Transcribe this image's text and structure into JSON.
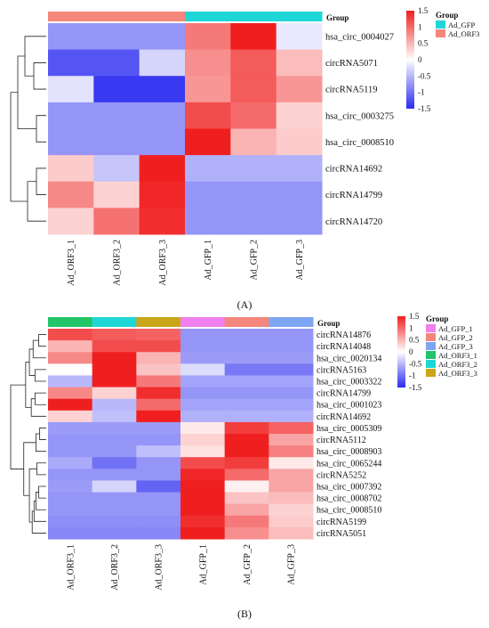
{
  "figure": {
    "label_a": "(A)",
    "label_b": "(B)"
  },
  "chart_data": [
    {
      "type": "heatmap",
      "panel": "A",
      "columns": [
        "Ad_ORF3_1",
        "Ad_ORF3_2",
        "Ad_ORF3_3",
        "Ad_GFP_1",
        "Ad_GFP_2",
        "Ad_GFP_3"
      ],
      "column_groups": [
        "Ad_ORF3",
        "Ad_ORF3",
        "Ad_ORF3",
        "Ad_GFP",
        "Ad_GFP",
        "Ad_GFP"
      ],
      "rows": [
        "hsa_circ_0004027",
        "circRNA5071",
        "circRNA5119",
        "hsa_circ_0003275",
        "hsa_circ_0008510",
        "circRNA14692",
        "circRNA14799",
        "circRNA14720"
      ],
      "values": [
        [
          -0.75,
          -0.75,
          -0.75,
          0.9,
          1.6,
          -0.15
        ],
        [
          -1.2,
          -1.2,
          -0.3,
          0.75,
          1.1,
          0.45
        ],
        [
          -0.2,
          -1.4,
          -1.4,
          0.7,
          1.1,
          0.7
        ],
        [
          -0.75,
          -0.75,
          -0.75,
          1.2,
          1.0,
          0.3
        ],
        [
          -0.75,
          -0.75,
          -0.75,
          1.5,
          0.5,
          0.35
        ],
        [
          0.35,
          -0.4,
          1.7,
          -0.55,
          -0.55,
          -0.55
        ],
        [
          0.8,
          0.3,
          1.45,
          -0.75,
          -0.75,
          -0.75
        ],
        [
          0.3,
          0.95,
          1.4,
          -0.75,
          -0.75,
          -0.75
        ]
      ],
      "color_scale": {
        "min": -1.5,
        "max": 1.5,
        "low": "#2b2bf0",
        "mid": "#ffffff",
        "high": "#f01f1f",
        "ticks": [
          "1.5",
          "1",
          "0.5",
          "0",
          "-0.5",
          "-1",
          "-1.5"
        ]
      },
      "annotation_title": "Group",
      "legend_title": "Group",
      "legend": [
        {
          "label": "Ad_GFP",
          "color": "#1fd6d6"
        },
        {
          "label": "Ad_ORF3",
          "color": "#f4867c"
        }
      ],
      "group_colors": {
        "Ad_ORF3": "#f4867c",
        "Ad_GFP": "#1fd6d6"
      },
      "row_dendrogram": [
        [
          5,
          6,
          0.55
        ],
        [
          7,
          8,
          1.05
        ],
        [
          3,
          4,
          0.55
        ],
        [
          1,
          2,
          0.7
        ],
        [
          0,
          11,
          1.2
        ],
        [
          12,
          10,
          1.6
        ],
        [
          9,
          13,
          2.0
        ]
      ]
    },
    {
      "type": "heatmap",
      "panel": "B",
      "columns": [
        "Ad_ORF3_1",
        "Ad_ORF3_2",
        "Ad_ORF3_3",
        "Ad_GFP_1",
        "Ad_GFP_2",
        "Ad_GFP_3"
      ],
      "column_groups": [
        "Ad_ORF3_1",
        "Ad_ORF3_2",
        "Ad_ORF3_3",
        "Ad_GFP_1",
        "Ad_GFP_2",
        "Ad_GFP_3"
      ],
      "rows": [
        "circRNA14876",
        "circRNA14048",
        "hsa_circ_0020134",
        "circRNA5163",
        "hsa_circ_0003322",
        "circRNA14799",
        "hsa_circ_0001023",
        "circRNA14692",
        "hsa_circ_0005309",
        "circRNA5112",
        "hsa_circ_0008903",
        "hsa_circ_0065244",
        "circRNA5252",
        "hsa_circ_0007392",
        "hsa_circ_0008702",
        "hsa_circ_0008510",
        "circRNA5199",
        "circRNA5051"
      ],
      "values": [
        [
          1.2,
          1.1,
          1.05,
          -0.75,
          -0.75,
          -0.75
        ],
        [
          0.5,
          1.2,
          1.2,
          -0.75,
          -0.75,
          -0.75
        ],
        [
          0.8,
          1.55,
          0.5,
          -0.7,
          -0.7,
          -0.7
        ],
        [
          0.0,
          1.65,
          0.4,
          -0.25,
          -0.95,
          -0.95
        ],
        [
          -0.5,
          1.55,
          0.9,
          -0.65,
          -0.65,
          -0.65
        ],
        [
          0.8,
          0.3,
          1.4,
          -0.75,
          -0.75,
          -0.75
        ],
        [
          1.5,
          -0.5,
          1.0,
          -0.65,
          -0.65,
          -0.65
        ],
        [
          0.3,
          -0.45,
          1.75,
          -0.55,
          -0.55,
          -0.55
        ],
        [
          -0.7,
          -0.7,
          -0.7,
          0.15,
          1.3,
          1.05
        ],
        [
          -0.75,
          -0.75,
          -0.75,
          0.3,
          1.55,
          0.6
        ],
        [
          -0.75,
          -0.75,
          -0.45,
          0.2,
          1.5,
          0.85
        ],
        [
          -0.6,
          -1.0,
          -0.75,
          1.2,
          1.3,
          0.15
        ],
        [
          -0.75,
          -0.75,
          -0.75,
          1.45,
          1.0,
          0.6
        ],
        [
          -0.7,
          -0.3,
          -1.1,
          1.6,
          0.1,
          0.6
        ],
        [
          -0.75,
          -0.75,
          -0.75,
          1.65,
          0.4,
          0.45
        ],
        [
          -0.75,
          -0.75,
          -0.75,
          1.6,
          0.6,
          0.3
        ],
        [
          -0.8,
          -0.8,
          -0.8,
          1.4,
          0.9,
          0.35
        ],
        [
          -0.85,
          -0.85,
          -0.85,
          1.55,
          0.75,
          0.45
        ]
      ],
      "color_scale": {
        "min": -1.5,
        "max": 1.5,
        "low": "#2b2bf0",
        "mid": "#ffffff",
        "high": "#f01f1f",
        "ticks": [
          "1.5",
          "1",
          "0.5",
          "0",
          "-0.5",
          "-1",
          "-1.5"
        ]
      },
      "annotation_title": "Group",
      "legend_title": "Group",
      "legend": [
        {
          "label": "Ad_GFP_1",
          "color": "#f080ee"
        },
        {
          "label": "Ad_GFP_2",
          "color": "#f4867c"
        },
        {
          "label": "Ad_GFP_3",
          "color": "#7ea6f0"
        },
        {
          "label": "Ad_ORF3_1",
          "color": "#22c46a"
        },
        {
          "label": "Ad_ORF3_2",
          "color": "#1fd6d6"
        },
        {
          "label": "Ad_ORF3_3",
          "color": "#c9a61a"
        }
      ],
      "group_colors": {
        "Ad_GFP_1": "#f080ee",
        "Ad_GFP_2": "#f4867c",
        "Ad_GFP_3": "#7ea6f0",
        "Ad_ORF3_1": "#22c46a",
        "Ad_ORF3_2": "#1fd6d6",
        "Ad_ORF3_3": "#c9a61a"
      },
      "row_dendrogram": [
        [
          0,
          1,
          0.4
        ],
        [
          18,
          2,
          0.7
        ],
        [
          3,
          4,
          0.6
        ],
        [
          19,
          20,
          0.9
        ],
        [
          5,
          6,
          0.6
        ],
        [
          22,
          7,
          0.8
        ],
        [
          21,
          23,
          1.1
        ],
        [
          8,
          9,
          0.35
        ],
        [
          25,
          10,
          0.55
        ],
        [
          11,
          12,
          0.5
        ],
        [
          13,
          14,
          0.4
        ],
        [
          28,
          15,
          0.55
        ],
        [
          29,
          16,
          0.65
        ],
        [
          30,
          17,
          0.75
        ],
        [
          27,
          31,
          0.9
        ],
        [
          26,
          32,
          1.2
        ],
        [
          24,
          33,
          1.9
        ]
      ]
    }
  ]
}
